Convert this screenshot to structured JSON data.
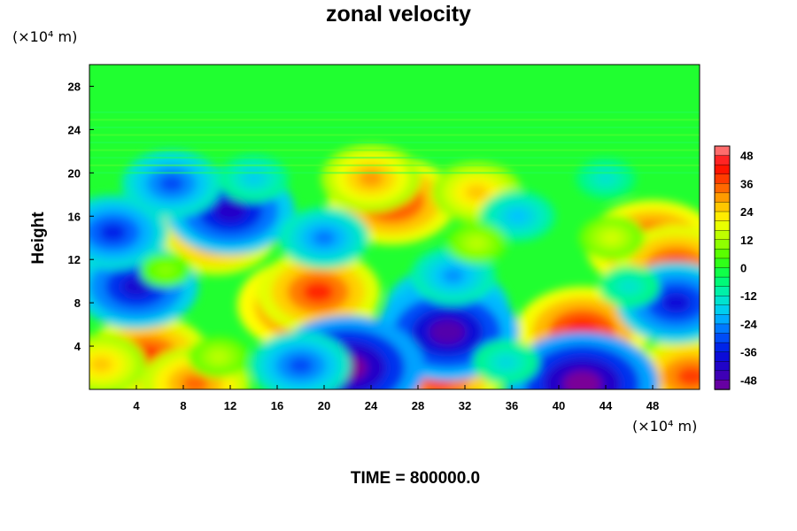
{
  "chart_data": {
    "type": "heatmap",
    "title": "zonal velocity",
    "xlabel": "",
    "ylabel": "Height",
    "x_unit": "(×10⁴ m)",
    "y_unit": "(×10⁴ m)",
    "xlim": [
      0,
      52
    ],
    "ylim": [
      0,
      30
    ],
    "x_ticks": [
      "4",
      "8",
      "12",
      "16",
      "20",
      "24",
      "28",
      "32",
      "36",
      "40",
      "44",
      "48"
    ],
    "y_ticks": [
      "4",
      "8",
      "12",
      "16",
      "20",
      "24",
      "28"
    ],
    "colorbar": {
      "range": [
        -52,
        52
      ],
      "ticks": [
        "48",
        "36",
        "24",
        "12",
        "0",
        "-12",
        "-24",
        "-36",
        "-48"
      ]
    },
    "background_value": 0,
    "features": [
      {
        "x": 18.5,
        "y": 7.8,
        "value": 46
      },
      {
        "x": 19.5,
        "y": 9.0,
        "value": 40
      },
      {
        "x": 42.0,
        "y": 5.3,
        "value": 44
      },
      {
        "x": 5.0,
        "y": 3.0,
        "value": 40
      },
      {
        "x": 27.3,
        "y": 2.4,
        "value": 36
      },
      {
        "x": 29.8,
        "y": 1.0,
        "value": 40
      },
      {
        "x": 51.3,
        "y": 1.2,
        "value": 38
      },
      {
        "x": 9.0,
        "y": 0.5,
        "value": 34
      },
      {
        "x": 25.8,
        "y": 17.4,
        "value": 42
      },
      {
        "x": 48.0,
        "y": 13.3,
        "value": 44
      },
      {
        "x": 10.8,
        "y": 14.3,
        "value": 38
      },
      {
        "x": 24.0,
        "y": 19.5,
        "value": 30
      },
      {
        "x": 33.0,
        "y": 18.2,
        "value": 26
      },
      {
        "x": 50.0,
        "y": 11.3,
        "value": 40
      },
      {
        "x": 1.0,
        "y": 2.3,
        "value": 26
      },
      {
        "x": 30.5,
        "y": 7.5,
        "value": -40
      },
      {
        "x": 30.5,
        "y": 5.3,
        "value": -48
      },
      {
        "x": 4.0,
        "y": 9.5,
        "value": -40
      },
      {
        "x": 22.0,
        "y": 2.0,
        "value": -52
      },
      {
        "x": 42.0,
        "y": 0.5,
        "value": -52
      },
      {
        "x": 12.0,
        "y": 16.5,
        "value": -42
      },
      {
        "x": 18.0,
        "y": 2.2,
        "value": -30
      },
      {
        "x": 50.0,
        "y": 8.0,
        "value": -38
      },
      {
        "x": 7.0,
        "y": 19.0,
        "value": -30
      },
      {
        "x": 2.0,
        "y": 14.5,
        "value": -34
      },
      {
        "x": 20.0,
        "y": 14.0,
        "value": -26
      },
      {
        "x": 36.5,
        "y": 16.0,
        "value": -20
      },
      {
        "x": 31.0,
        "y": 10.5,
        "value": -24
      },
      {
        "x": 14.0,
        "y": 19.5,
        "value": -18
      },
      {
        "x": 44.0,
        "y": 19.5,
        "value": -14
      },
      {
        "x": 33.0,
        "y": 13.5,
        "value": 14
      },
      {
        "x": 44.5,
        "y": 14.0,
        "value": 16
      },
      {
        "x": 11.0,
        "y": 3.0,
        "value": 14
      },
      {
        "x": 35.5,
        "y": 2.5,
        "value": -16
      },
      {
        "x": 6.5,
        "y": 11.0,
        "value": 10
      },
      {
        "x": 46.0,
        "y": 9.5,
        "value": -14
      }
    ]
  },
  "time_label": "TIME = 800000.0"
}
